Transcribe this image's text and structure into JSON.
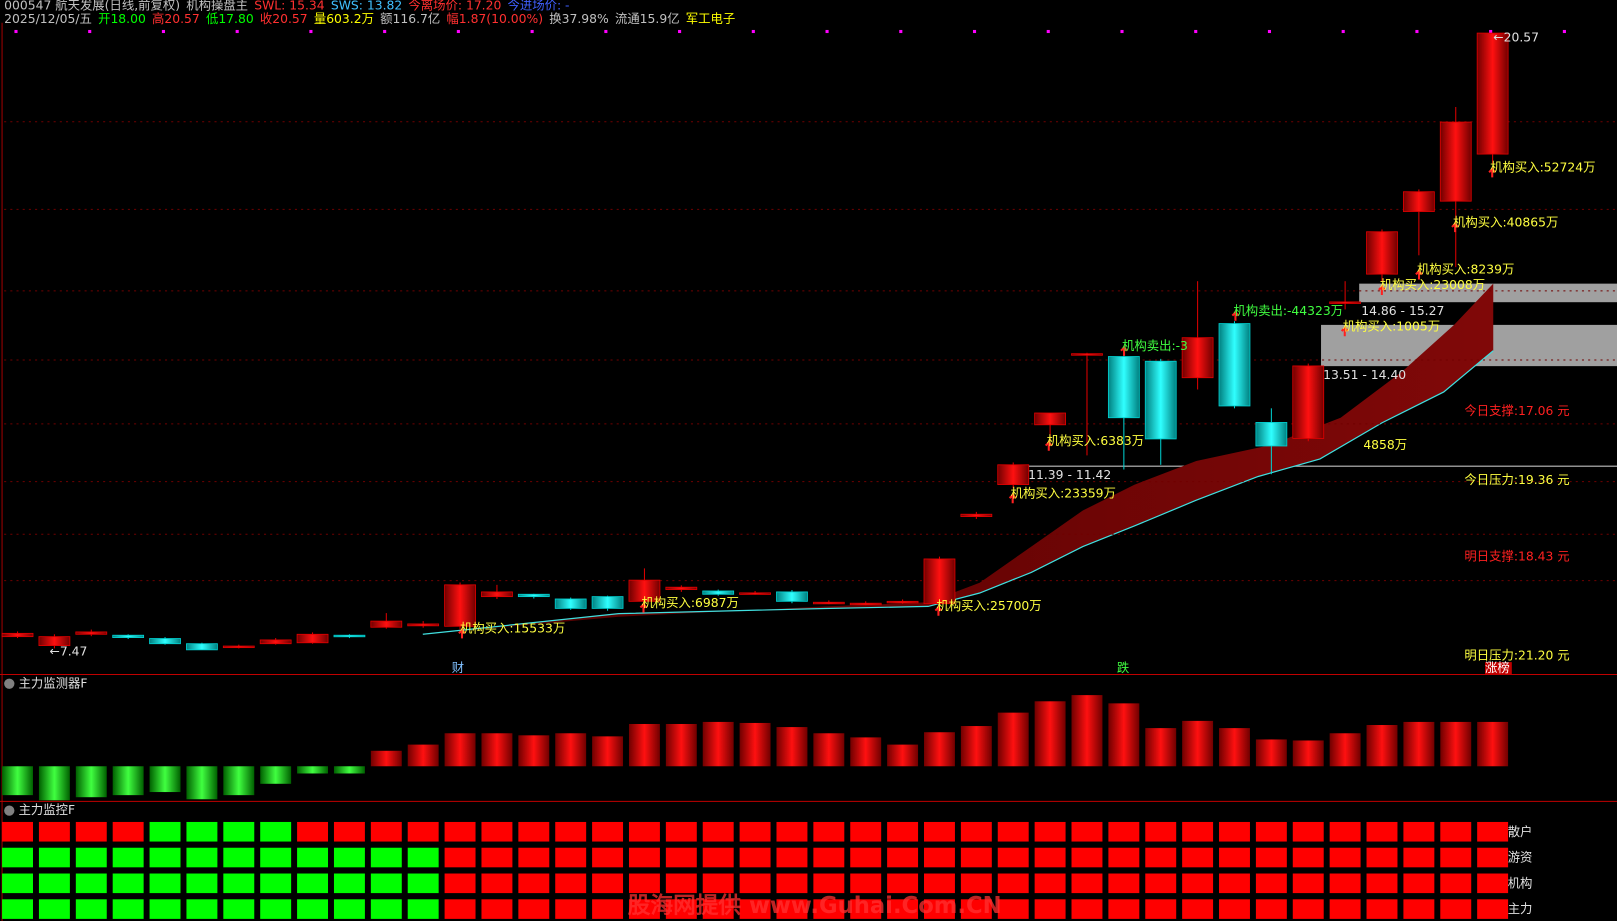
{
  "header": {
    "line1": [
      {
        "text": "000547 航天发展(日线,前复权)",
        "color": "#c0c0c0"
      },
      {
        "text": "机构操盘主",
        "color": "#c0c0c0"
      },
      {
        "text": "SWL: 15.34",
        "color": "#ff3030"
      },
      {
        "text": "SWS: 13.82",
        "color": "#40c0ff"
      },
      {
        "text": "今离场价: 17.20",
        "color": "#ff3030"
      },
      {
        "text": "今进场价: -",
        "color": "#4060ff"
      }
    ],
    "line2": [
      {
        "text": "2025/12/05/五",
        "color": "#c0c0c0"
      },
      {
        "text": "开18.00",
        "color": "#00ff00"
      },
      {
        "text": "高20.57",
        "color": "#ff3030"
      },
      {
        "text": "低17.80",
        "color": "#00ff00"
      },
      {
        "text": "收20.57",
        "color": "#ff3030"
      },
      {
        "text": "量603.2万",
        "color": "#ffff00"
      },
      {
        "text": "额116.7亿",
        "color": "#c0c0c0"
      },
      {
        "text": "幅1.87(10.00%)",
        "color": "#ff3030"
      },
      {
        "text": "换37.98%",
        "color": "#c0c0c0"
      },
      {
        "text": "流通15.9亿",
        "color": "#c0c0c0"
      },
      {
        "text": "军工电子",
        "color": "#ffff00"
      }
    ]
  },
  "chart_data": [
    {
      "type": "candlestick",
      "open": [
        7.75,
        7.56,
        7.8,
        7.78,
        7.71,
        7.6,
        7.52,
        7.6,
        7.62,
        7.78,
        7.95,
        7.98,
        7.97,
        8.6,
        8.65,
        8.55,
        8.6,
        8.5,
        8.75,
        8.72,
        8.68,
        8.7,
        8.47,
        8.46,
        8.49,
        8.45,
        10.3,
        10.98,
        12.25,
        13.75,
        13.7,
        13.6,
        13.25,
        14.4,
        12.3,
        11.96,
        14.85,
        15.45,
        16.78,
        17.0,
        18.0
      ],
      "high": [
        7.86,
        7.8,
        7.9,
        7.8,
        7.74,
        7.62,
        7.58,
        7.72,
        7.84,
        7.8,
        8.25,
        8.08,
        8.9,
        8.85,
        8.66,
        8.58,
        8.62,
        9.2,
        8.84,
        8.75,
        8.72,
        8.74,
        8.52,
        8.5,
        8.54,
        9.45,
        10.4,
        11.45,
        12.5,
        13.78,
        13.75,
        13.65,
        15.3,
        14.45,
        12.6,
        13.55,
        15.3,
        16.4,
        17.25,
        19.0,
        20.57
      ],
      "low": [
        7.72,
        7.5,
        7.76,
        7.7,
        7.58,
        7.47,
        7.5,
        7.58,
        7.6,
        7.72,
        7.92,
        7.94,
        7.9,
        8.55,
        8.56,
        8.32,
        8.3,
        8.45,
        8.7,
        8.62,
        8.64,
        8.46,
        8.44,
        8.42,
        8.45,
        8.4,
        10.25,
        10.9,
        11.9,
        11.6,
        11.3,
        11.4,
        13.0,
        12.6,
        11.2,
        11.9,
        14.7,
        15.3,
        15.85,
        15.6,
        17.8
      ],
      "close": [
        7.82,
        7.75,
        7.85,
        7.73,
        7.6,
        7.47,
        7.55,
        7.68,
        7.8,
        7.75,
        8.08,
        8.02,
        8.85,
        8.7,
        8.6,
        8.35,
        8.35,
        8.95,
        8.8,
        8.65,
        8.68,
        8.5,
        8.48,
        8.46,
        8.5,
        9.4,
        10.35,
        11.4,
        12.5,
        13.76,
        12.4,
        11.95,
        14.1,
        12.65,
        11.8,
        13.5,
        14.86,
        16.35,
        17.2,
        18.68,
        20.57
      ],
      "up_color": "#e00000",
      "down_color": "#00d0d0",
      "ylim": [
        6.99,
        20.79
      ],
      "annotations": [
        {
          "text": "←7.47",
          "color": "#e0e0e0"
        },
        {
          "text": "机构买入:15533万",
          "color": "#ffff40"
        },
        {
          "text": "机构买入:6987万",
          "color": "#ffff40"
        },
        {
          "text": "机构买入:25700万",
          "color": "#ffff40"
        },
        {
          "text": "机构买入:23359万",
          "color": "#ffff40"
        },
        {
          "text": "机构买入:6383万",
          "color": "#ffff40"
        },
        {
          "text": "机构卖出:-3",
          "color": "#40ff40"
        },
        {
          "text": "机构卖出:-44323万",
          "color": "#40ff40"
        },
        {
          "text": "4858万",
          "color": "#ffff40"
        },
        {
          "text": "机构买入:1005万",
          "color": "#ffff40"
        },
        {
          "text": "机构买入:23008万",
          "color": "#ffff40"
        },
        {
          "text": "机构买入:8239万",
          "color": "#ffff40"
        },
        {
          "text": "机构买入:40865万",
          "color": "#ffff40"
        },
        {
          "text": "机构买入:52724万",
          "color": "#ffff40"
        },
        {
          "text": "←20.57",
          "color": "#e0e0e0"
        },
        {
          "text": "11.39 - 11.42",
          "color": "#e0e0e0"
        },
        {
          "text": "13.51 - 14.40",
          "color": "#e0e0e0"
        },
        {
          "text": "14.86 - 15.27",
          "color": "#e0e0e0"
        }
      ],
      "side_labels": [
        {
          "text": "今日支撑:17.06 元",
          "color": "#ff2020"
        },
        {
          "text": "今日压力:19.36 元",
          "color": "#ffff40"
        },
        {
          "text": "明日支撑:18.43 元",
          "color": "#ff2020"
        },
        {
          "text": "明日压力:21.20 元",
          "color": "#ffff40"
        }
      ],
      "markers": [
        "财",
        "跌",
        "涨榜"
      ]
    },
    {
      "type": "bar",
      "title": "主力监测器F",
      "values": [
        -28,
        -33,
        -30,
        -28,
        -25,
        -32,
        -28,
        -17,
        -7,
        -7,
        15,
        21,
        32,
        32,
        30,
        32,
        29,
        41,
        41,
        43,
        42,
        38,
        32,
        28,
        21,
        33,
        39,
        52,
        63,
        69,
        61,
        37,
        44,
        37,
        26,
        25,
        32,
        40,
        43,
        43,
        43
      ],
      "ylim": [
        -35,
        78
      ]
    },
    {
      "type": "grid",
      "title": "主力监控F",
      "categories": [
        "散户",
        "游资",
        "机构",
        "主力"
      ],
      "cells": [
        [
          "#ff0000",
          "#ff0000",
          "#ff0000",
          "#ff0000",
          "#00ff00",
          "#00ff00",
          "#00ff00",
          "#00ff00",
          "#ff0000",
          "#ff0000",
          "#ff0000",
          "#ff0000",
          "#ff0000",
          "#ff0000",
          "#ff0000",
          "#ff0000",
          "#ff0000",
          "#ff0000",
          "#ff0000",
          "#ff0000",
          "#ff0000",
          "#ff0000",
          "#ff0000",
          "#ff0000",
          "#ff0000",
          "#ff0000",
          "#ff0000",
          "#ff0000",
          "#ff0000",
          "#ff0000",
          "#ff0000",
          "#ff0000",
          "#ff0000",
          "#ff0000",
          "#ff0000",
          "#ff0000",
          "#ff0000",
          "#ff0000",
          "#ff0000",
          "#ff0000",
          "#ff0000"
        ],
        [
          "#00ff00",
          "#00ff00",
          "#00ff00",
          "#00ff00",
          "#00ff00",
          "#00ff00",
          "#00ff00",
          "#00ff00",
          "#00ff00",
          "#00ff00",
          "#00ff00",
          "#00ff00",
          "#ff0000",
          "#ff0000",
          "#ff0000",
          "#ff0000",
          "#ff0000",
          "#ff0000",
          "#ff0000",
          "#ff0000",
          "#ff0000",
          "#ff0000",
          "#ff0000",
          "#ff0000",
          "#ff0000",
          "#ff0000",
          "#ff0000",
          "#ff0000",
          "#ff0000",
          "#ff0000",
          "#ff0000",
          "#ff0000",
          "#ff0000",
          "#ff0000",
          "#ff0000",
          "#ff0000",
          "#ff0000",
          "#ff0000",
          "#ff0000",
          "#ff0000",
          "#ff0000"
        ],
        [
          "#00ff00",
          "#00ff00",
          "#00ff00",
          "#00ff00",
          "#00ff00",
          "#00ff00",
          "#00ff00",
          "#00ff00",
          "#00ff00",
          "#00ff00",
          "#00ff00",
          "#00ff00",
          "#ff0000",
          "#ff0000",
          "#ff0000",
          "#ff0000",
          "#ff0000",
          "#ff0000",
          "#ff0000",
          "#ff0000",
          "#ff0000",
          "#ff0000",
          "#ff0000",
          "#ff0000",
          "#ff0000",
          "#ff0000",
          "#ff0000",
          "#ff0000",
          "#ff0000",
          "#ff0000",
          "#ff0000",
          "#ff0000",
          "#ff0000",
          "#ff0000",
          "#ff0000",
          "#ff0000",
          "#ff0000",
          "#ff0000",
          "#ff0000",
          "#ff0000",
          "#ff0000"
        ],
        [
          "#00ff00",
          "#00ff00",
          "#00ff00",
          "#00ff00",
          "#00ff00",
          "#00ff00",
          "#00ff00",
          "#00ff00",
          "#00ff00",
          "#00ff00",
          "#00ff00",
          "#00ff00",
          "#ff0000",
          "#ff0000",
          "#ff0000",
          "#ff0000",
          "#ff0000",
          "#ff0000",
          "#ff0000",
          "#ff0000",
          "#ff0000",
          "#ff0000",
          "#ff0000",
          "#ff0000",
          "#ff0000",
          "#ff0000",
          "#ff0000",
          "#ff0000",
          "#ff0000",
          "#ff0000",
          "#ff0000",
          "#ff0000",
          "#ff0000",
          "#ff0000",
          "#ff0000",
          "#ff0000",
          "#ff0000",
          "#ff0000",
          "#ff0000",
          "#ff0000",
          "#ff0000"
        ]
      ]
    }
  ],
  "watermark": "股海网提供 www.Guhai.Com.CN"
}
